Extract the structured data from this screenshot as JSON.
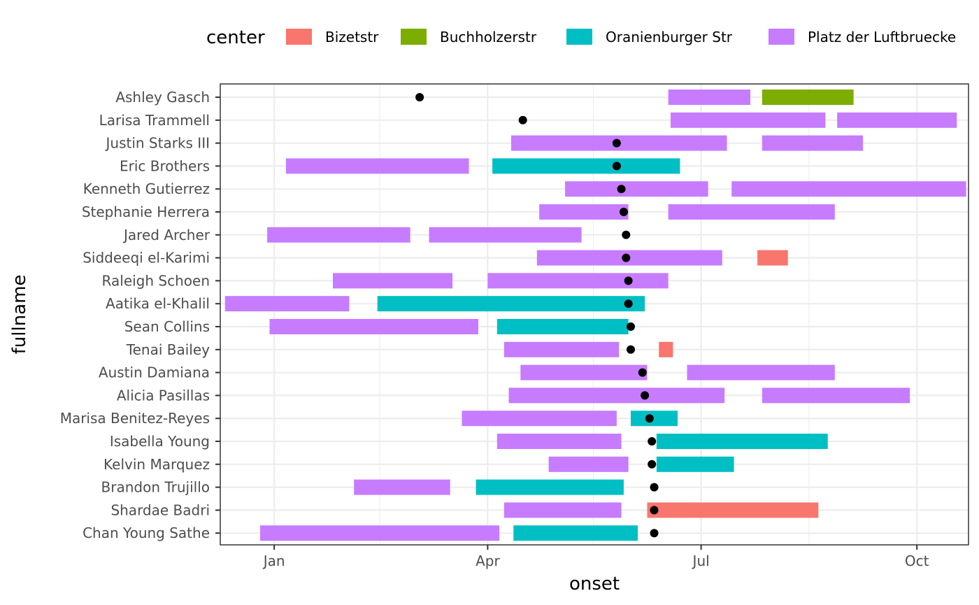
{
  "chart_data": {
    "type": "timeline",
    "xlabel": "onset",
    "ylabel": "fullname",
    "xlim": [
      "2019-12-09",
      "2020-10-23"
    ],
    "x_ticks": [
      {
        "date": "2020-01-01",
        "label": "Jan"
      },
      {
        "date": "2020-04-01",
        "label": "Apr"
      },
      {
        "date": "2020-07-01",
        "label": "Jul"
      },
      {
        "date": "2020-10-01",
        "label": "Oct"
      }
    ],
    "x_minor_ticks": [
      "2020-02-15",
      "2020-05-16",
      "2020-08-16"
    ],
    "grid": true,
    "legend": {
      "title": "center",
      "position": "top",
      "entries": [
        {
          "name": "Bizetstr",
          "color": "#F8766D"
        },
        {
          "name": "Buchholzerstr",
          "color": "#7CAE00"
        },
        {
          "name": "Oranienburger Str",
          "color": "#00BFC4"
        },
        {
          "name": "Platz der Luftbruecke",
          "color": "#C77CFF"
        }
      ]
    },
    "rows": [
      {
        "name": "Ashley Gasch",
        "onset": "2020-03-03",
        "stays": [
          {
            "start": "2020-06-17",
            "end": "2020-07-22",
            "center": "Platz der Luftbruecke"
          },
          {
            "start": "2020-07-27",
            "end": "2020-09-04",
            "center": "Buchholzerstr"
          }
        ]
      },
      {
        "name": "Larisa Trammell",
        "onset": "2020-04-16",
        "stays": [
          {
            "start": "2020-06-18",
            "end": "2020-08-23",
            "center": "Platz der Luftbruecke"
          },
          {
            "start": "2020-08-28",
            "end": "2020-10-18",
            "center": "Platz der Luftbruecke"
          }
        ]
      },
      {
        "name": "Justin Starks III",
        "onset": "2020-05-26",
        "stays": [
          {
            "start": "2020-04-11",
            "end": "2020-07-12",
            "center": "Platz der Luftbruecke"
          },
          {
            "start": "2020-07-27",
            "end": "2020-09-08",
            "center": "Platz der Luftbruecke"
          }
        ]
      },
      {
        "name": "Eric Brothers",
        "onset": "2020-05-26",
        "stays": [
          {
            "start": "2020-01-06",
            "end": "2020-03-24",
            "center": "Platz der Luftbruecke"
          },
          {
            "start": "2020-04-03",
            "end": "2020-06-22",
            "center": "Oranienburger Str"
          }
        ]
      },
      {
        "name": "Kenneth Gutierrez",
        "onset": "2020-05-28",
        "stays": [
          {
            "start": "2020-05-04",
            "end": "2020-07-04",
            "center": "Platz der Luftbruecke"
          },
          {
            "start": "2020-07-14",
            "end": "2020-10-22",
            "center": "Platz der Luftbruecke"
          }
        ]
      },
      {
        "name": "Stephanie Herrera",
        "onset": "2020-05-29",
        "stays": [
          {
            "start": "2020-04-23",
            "end": "2020-05-31",
            "center": "Platz der Luftbruecke"
          },
          {
            "start": "2020-06-17",
            "end": "2020-08-27",
            "center": "Platz der Luftbruecke"
          }
        ]
      },
      {
        "name": "Jared Archer",
        "onset": "2020-05-30",
        "stays": [
          {
            "start": "2019-12-29",
            "end": "2020-02-28",
            "center": "Platz der Luftbruecke"
          },
          {
            "start": "2020-03-07",
            "end": "2020-05-11",
            "center": "Platz der Luftbruecke"
          }
        ]
      },
      {
        "name": "Siddeeqi el-Karimi",
        "onset": "2020-05-30",
        "stays": [
          {
            "start": "2020-04-22",
            "end": "2020-07-10",
            "center": "Platz der Luftbruecke"
          },
          {
            "start": "2020-07-25",
            "end": "2020-08-07",
            "center": "Bizetstr"
          }
        ]
      },
      {
        "name": "Raleigh Schoen",
        "onset": "2020-05-31",
        "stays": [
          {
            "start": "2020-01-26",
            "end": "2020-03-17",
            "center": "Platz der Luftbruecke"
          },
          {
            "start": "2020-04-01",
            "end": "2020-06-17",
            "center": "Platz der Luftbruecke"
          }
        ]
      },
      {
        "name": "Aatika el-Khalil",
        "onset": "2020-05-31",
        "stays": [
          {
            "start": "2019-12-11",
            "end": "2020-02-02",
            "center": "Platz der Luftbruecke"
          },
          {
            "start": "2020-02-14",
            "end": "2020-06-07",
            "center": "Oranienburger Str"
          }
        ]
      },
      {
        "name": "Sean Collins",
        "onset": "2020-06-01",
        "stays": [
          {
            "start": "2019-12-30",
            "end": "2020-03-28",
            "center": "Platz der Luftbruecke"
          },
          {
            "start": "2020-04-05",
            "end": "2020-05-31",
            "center": "Oranienburger Str"
          }
        ]
      },
      {
        "name": "Tenai Bailey",
        "onset": "2020-06-01",
        "stays": [
          {
            "start": "2020-04-08",
            "end": "2020-05-27",
            "center": "Platz der Luftbruecke"
          },
          {
            "start": "2020-06-13",
            "end": "2020-06-19",
            "center": "Bizetstr"
          }
        ]
      },
      {
        "name": "Austin Damiana",
        "onset": "2020-06-06",
        "stays": [
          {
            "start": "2020-04-15",
            "end": "2020-06-08",
            "center": "Platz der Luftbruecke"
          },
          {
            "start": "2020-06-25",
            "end": "2020-08-27",
            "center": "Platz der Luftbruecke"
          }
        ]
      },
      {
        "name": "Alicia Pasillas",
        "onset": "2020-06-07",
        "stays": [
          {
            "start": "2020-04-10",
            "end": "2020-07-11",
            "center": "Platz der Luftbruecke"
          },
          {
            "start": "2020-07-27",
            "end": "2020-09-28",
            "center": "Platz der Luftbruecke"
          }
        ]
      },
      {
        "name": "Marisa Benitez-Reyes",
        "onset": "2020-06-09",
        "stays": [
          {
            "start": "2020-03-21",
            "end": "2020-05-26",
            "center": "Platz der Luftbruecke"
          },
          {
            "start": "2020-06-01",
            "end": "2020-06-21",
            "center": "Oranienburger Str"
          }
        ]
      },
      {
        "name": "Isabella Young",
        "onset": "2020-06-10",
        "stays": [
          {
            "start": "2020-04-05",
            "end": "2020-05-28",
            "center": "Platz der Luftbruecke"
          },
          {
            "start": "2020-06-12",
            "end": "2020-08-24",
            "center": "Oranienburger Str"
          }
        ]
      },
      {
        "name": "Kelvin Marquez",
        "onset": "2020-06-10",
        "stays": [
          {
            "start": "2020-04-27",
            "end": "2020-05-31",
            "center": "Platz der Luftbruecke"
          },
          {
            "start": "2020-06-12",
            "end": "2020-07-15",
            "center": "Oranienburger Str"
          }
        ]
      },
      {
        "name": "Brandon Trujillo",
        "onset": "2020-06-11",
        "stays": [
          {
            "start": "2020-02-04",
            "end": "2020-03-16",
            "center": "Platz der Luftbruecke"
          },
          {
            "start": "2020-03-27",
            "end": "2020-05-29",
            "center": "Oranienburger Str"
          }
        ]
      },
      {
        "name": "Shardae Badri",
        "onset": "2020-06-11",
        "stays": [
          {
            "start": "2020-04-08",
            "end": "2020-05-28",
            "center": "Platz der Luftbruecke"
          },
          {
            "start": "2020-06-08",
            "end": "2020-08-20",
            "center": "Bizetstr"
          }
        ]
      },
      {
        "name": "Chan Young Sathe",
        "onset": "2020-06-11",
        "stays": [
          {
            "start": "2019-12-26",
            "end": "2020-04-06",
            "center": "Platz der Luftbruecke"
          },
          {
            "start": "2020-04-12",
            "end": "2020-06-04",
            "center": "Oranienburger Str"
          }
        ]
      }
    ]
  }
}
